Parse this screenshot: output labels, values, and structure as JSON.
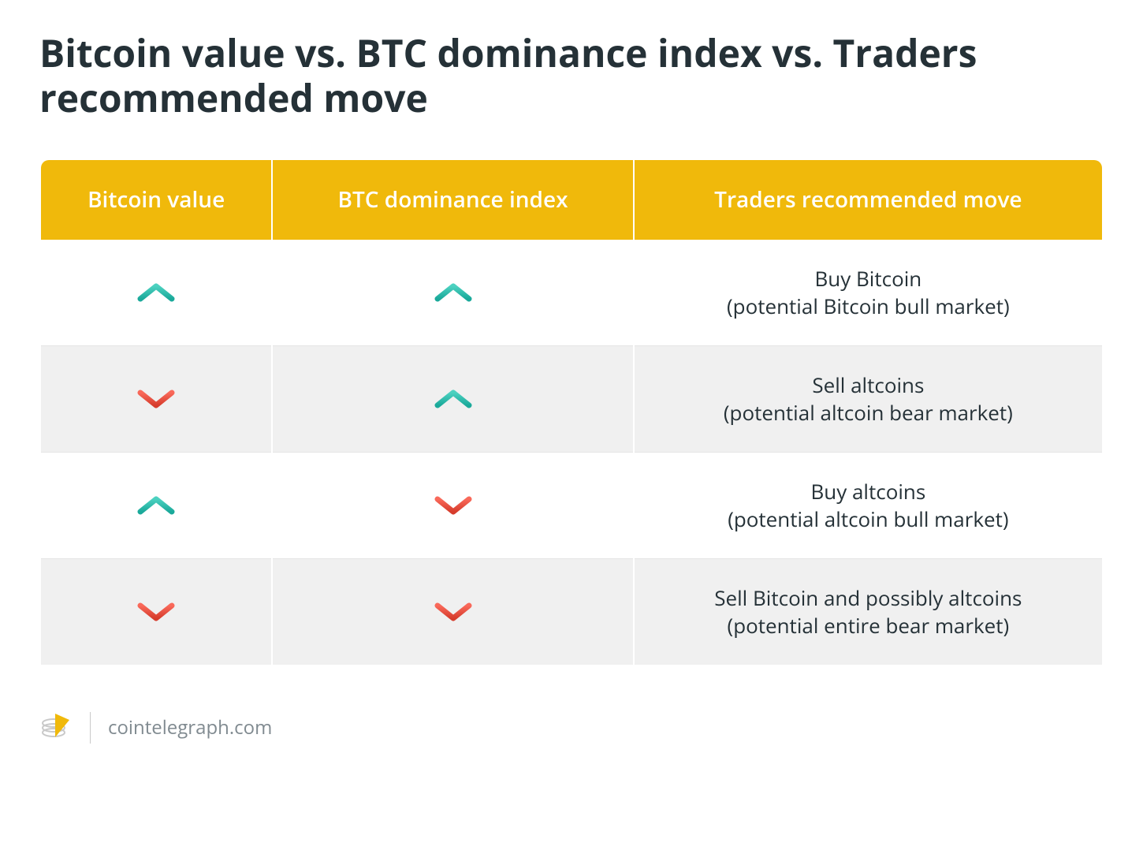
{
  "title": "Bitcoin value vs. BTC dominance index vs. Traders recommended move",
  "columns": [
    "Bitcoin value",
    "BTC dominance index",
    "Traders recommended move"
  ],
  "header_bg": "#f0b90b",
  "header_text_color": "#ffffff",
  "row_odd_bg": "#ffffff",
  "row_even_bg": "#f0f0f0",
  "text_color": "#253137",
  "up_color_top": "#4cd1c0",
  "up_color_bottom": "#1aa99a",
  "down_color_top": "#f9695a",
  "down_color_bottom": "#d63c2c",
  "rows": [
    {
      "btc_value": "up",
      "dominance": "up",
      "move_main": "Buy Bitcoin",
      "move_sub": "(potential Bitcoin bull market)"
    },
    {
      "btc_value": "down",
      "dominance": "up",
      "move_main": "Sell altcoins",
      "move_sub": "(potential altcoin bear market)"
    },
    {
      "btc_value": "up",
      "dominance": "down",
      "move_main": "Buy altcoins",
      "move_sub": "(potential altcoin bull market)"
    },
    {
      "btc_value": "down",
      "dominance": "down",
      "move_main": "Sell Bitcoin and possibly altcoins",
      "move_sub": "(potential entire bear market)"
    }
  ],
  "footer_text": "cointelegraph.com",
  "footer_text_color": "#808a90",
  "title_fontsize": 48,
  "header_fontsize": 28,
  "body_fontsize": 26,
  "footer_fontsize": 24
}
